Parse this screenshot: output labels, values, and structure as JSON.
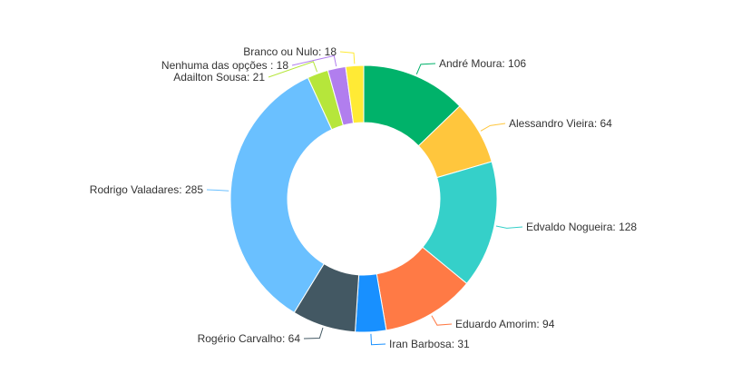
{
  "chart_data": {
    "type": "pie",
    "variant": "donut",
    "title": "",
    "legend": "none",
    "series": [
      {
        "name": "André Moura",
        "value": 106,
        "color": "#00b26a"
      },
      {
        "name": "Alessandro Vieira",
        "value": 64,
        "color": "#ffc63d"
      },
      {
        "name": "Edvaldo Nogueira",
        "value": 128,
        "color": "#35d0c9"
      },
      {
        "name": "Eduardo Amorim",
        "value": 94,
        "color": "#ff7a45"
      },
      {
        "name": "Iran Barbosa",
        "value": 31,
        "color": "#1890ff"
      },
      {
        "name": "Rogério Carvalho",
        "value": 64,
        "color": "#435863"
      },
      {
        "name": "Rodrigo Valadares",
        "value": 285,
        "color": "#6ac0ff"
      },
      {
        "name": "Adailton Sousa",
        "value": 21,
        "color": "#b6e63b"
      },
      {
        "name": "Nenhuma das opções ",
        "value": 18,
        "color": "#b17eee"
      },
      {
        "name": "Branco ou Nulo",
        "value": 18,
        "color": "#ffea35"
      }
    ],
    "label_format": "{name}: {value}"
  }
}
